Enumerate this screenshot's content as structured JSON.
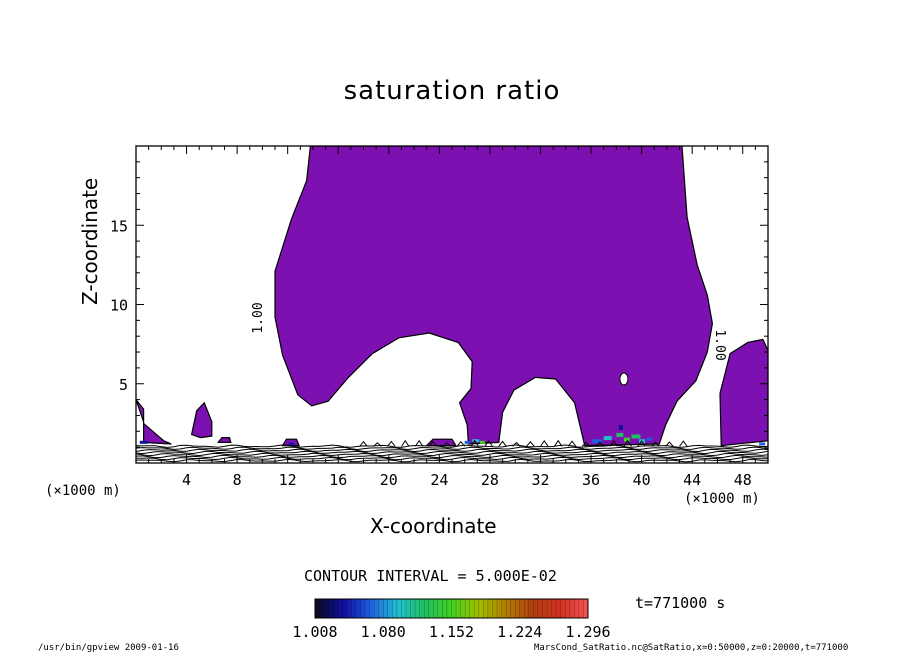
{
  "chart_data": {
    "type": "heatmap",
    "title": "saturation ratio",
    "xlabel": "X-coordinate",
    "ylabel": "Z-coordinate",
    "x_unit": "(×1000 m)",
    "y_unit": "(×1000 m)",
    "xlim": [
      0,
      50
    ],
    "ylim": [
      0,
      20
    ],
    "x_ticks": [
      "4",
      "8",
      "12",
      "16",
      "20",
      "24",
      "28",
      "32",
      "36",
      "40",
      "44",
      "48"
    ],
    "y_ticks": [
      "5",
      "10",
      "15"
    ],
    "contour_labels": [
      "1.00",
      "1.00"
    ],
    "contour_interval": "CONTOUR INTERVAL = 5.000E-02",
    "colorbar": {
      "ticks": [
        "1.008",
        "1.080",
        "1.152",
        "1.224",
        "1.296"
      ],
      "range": [
        1.008,
        1.296
      ],
      "colors": [
        "#0a0a24",
        "#1010a0",
        "#1e60e0",
        "#20c0d0",
        "#20c060",
        "#40d020",
        "#a0c000",
        "#b08000",
        "#b04010",
        "#d03020",
        "#f05050"
      ]
    },
    "saturated_fill_color": "#7c10b0",
    "time_label": "t=771000 s"
  },
  "footer": {
    "left": "/usr/bin/gpview  2009-01-16",
    "right": "MarsCond_SatRatio.nc@SatRatio,x=0:50000,z=0:20000,t=771000"
  }
}
